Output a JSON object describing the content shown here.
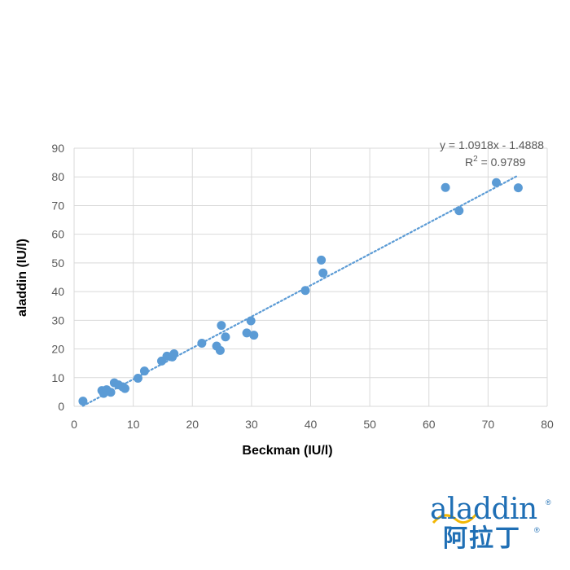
{
  "chart_data": {
    "type": "scatter",
    "xlabel": "Beckman (IU/l)",
    "ylabel": "aladdin (IU/l)",
    "xlim": [
      0,
      80
    ],
    "ylim": [
      0,
      90
    ],
    "x_ticks": [
      "0",
      "10",
      "20",
      "30",
      "40",
      "50",
      "60",
      "70",
      "80"
    ],
    "y_ticks": [
      "0",
      "10",
      "20",
      "30",
      "40",
      "50",
      "60",
      "70",
      "80",
      "90"
    ],
    "grid": true,
    "points": [
      {
        "x": 1.5,
        "y": 1.8
      },
      {
        "x": 4.7,
        "y": 5.5
      },
      {
        "x": 5.0,
        "y": 4.5
      },
      {
        "x": 5.5,
        "y": 5.8
      },
      {
        "x": 6.2,
        "y": 4.9
      },
      {
        "x": 6.8,
        "y": 8.2
      },
      {
        "x": 7.5,
        "y": 7.5
      },
      {
        "x": 8.2,
        "y": 6.8
      },
      {
        "x": 8.6,
        "y": 6.2
      },
      {
        "x": 10.8,
        "y": 9.8
      },
      {
        "x": 11.9,
        "y": 12.3
      },
      {
        "x": 14.8,
        "y": 15.8
      },
      {
        "x": 15.7,
        "y": 17.5
      },
      {
        "x": 16.6,
        "y": 17.2
      },
      {
        "x": 16.9,
        "y": 18.3
      },
      {
        "x": 21.6,
        "y": 22.0
      },
      {
        "x": 24.1,
        "y": 21.0
      },
      {
        "x": 24.7,
        "y": 19.5
      },
      {
        "x": 24.9,
        "y": 28.2
      },
      {
        "x": 25.6,
        "y": 24.2
      },
      {
        "x": 29.2,
        "y": 25.6
      },
      {
        "x": 29.9,
        "y": 29.8
      },
      {
        "x": 30.4,
        "y": 24.8
      },
      {
        "x": 39.1,
        "y": 40.4
      },
      {
        "x": 41.8,
        "y": 51.0
      },
      {
        "x": 42.1,
        "y": 46.5
      },
      {
        "x": 62.8,
        "y": 76.3
      },
      {
        "x": 65.1,
        "y": 68.2
      },
      {
        "x": 71.4,
        "y": 78.0
      },
      {
        "x": 75.1,
        "y": 76.2
      }
    ],
    "trendline": {
      "type": "linear",
      "slope": 1.0918,
      "intercept": -1.4888,
      "x_range": [
        1.5,
        75.1
      ],
      "style": "dotted",
      "equation_label": "y = 1.0918x - 1.4888",
      "r2_prefix": "R",
      "r2_sup": "2",
      "r2_value": " = 0.9789"
    },
    "colors": {
      "marker": "#5b9bd5",
      "trendline": "#5b9bd5",
      "grid": "#d9d9d9",
      "tick_text": "#595959",
      "axis_title": "#000000"
    }
  },
  "logo": {
    "latin_text": "aladdin",
    "cn_text": "阿拉丁",
    "registered_mark": "®",
    "color": "#1f6fb5"
  }
}
